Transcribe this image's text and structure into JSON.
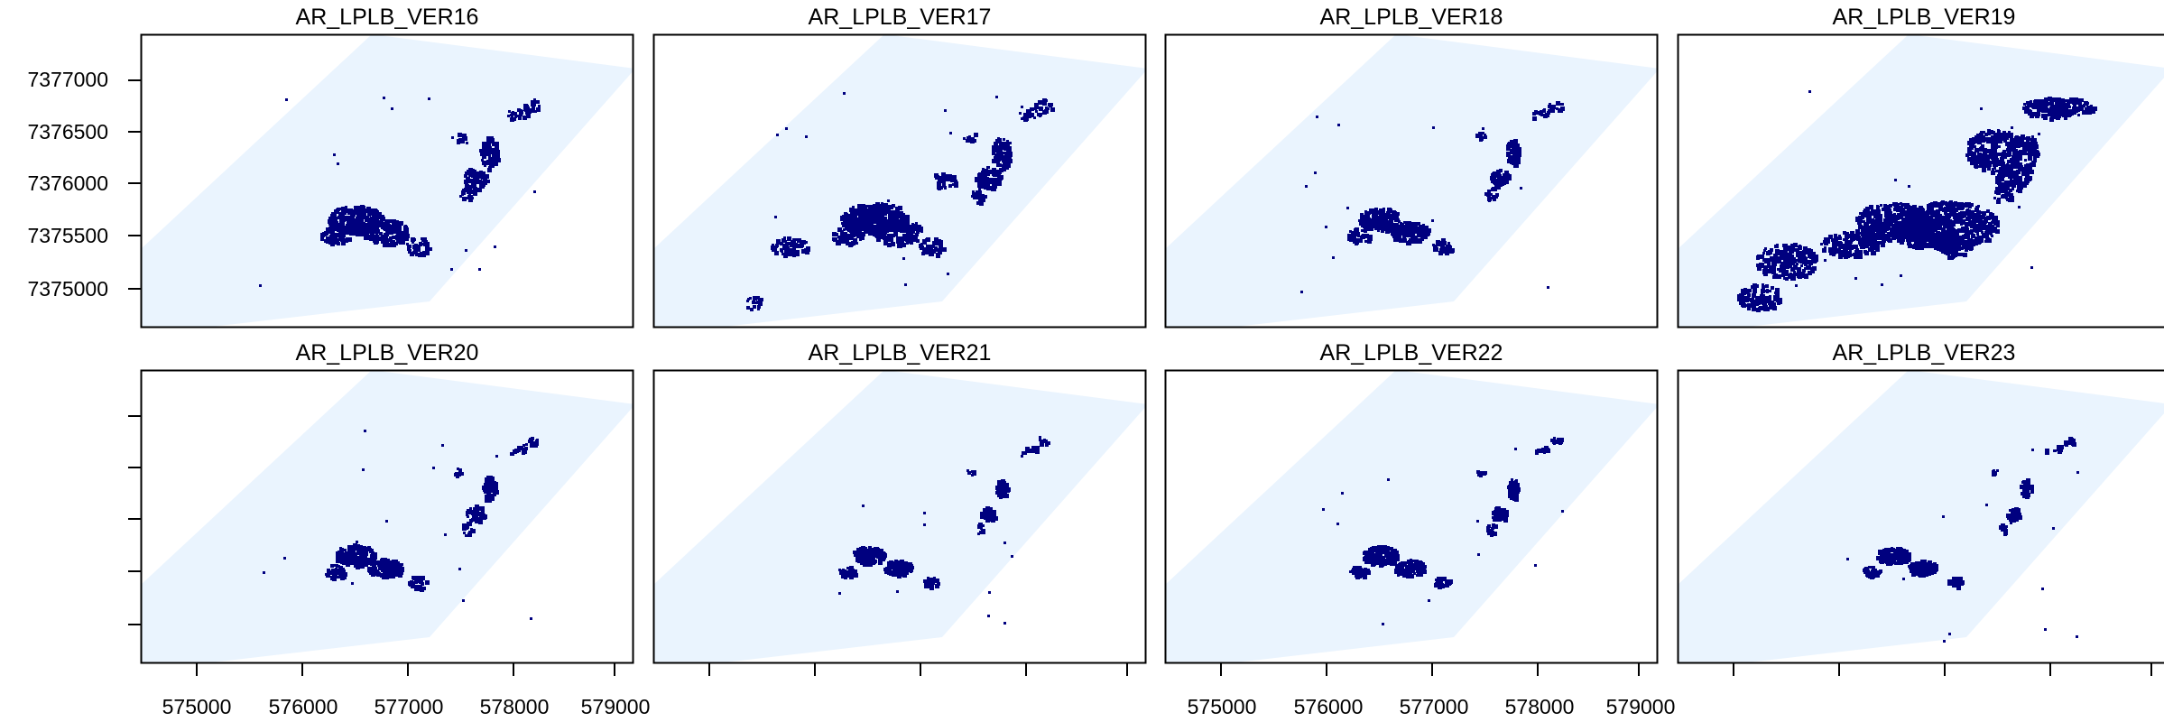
{
  "panels": [
    {
      "title": "AR_LPLB_VER16"
    },
    {
      "title": "AR_LPLB_VER17"
    },
    {
      "title": "AR_LPLB_VER18"
    },
    {
      "title": "AR_LPLB_VER19"
    },
    {
      "title": "AR_LPLB_VER20"
    },
    {
      "title": "AR_LPLB_VER21"
    },
    {
      "title": "AR_LPLB_VER22"
    },
    {
      "title": "AR_LPLB_VER23"
    }
  ],
  "axes": {
    "x_ticks": [
      "575000",
      "576000",
      "577000",
      "578000",
      "579000"
    ],
    "y_ticks": [
      "7377000",
      "7376500",
      "7376000",
      "7375500",
      "7375000"
    ]
  },
  "colors": {
    "study_area": "#eaf4fe",
    "class": "#00007f",
    "frame": "#000000"
  }
}
